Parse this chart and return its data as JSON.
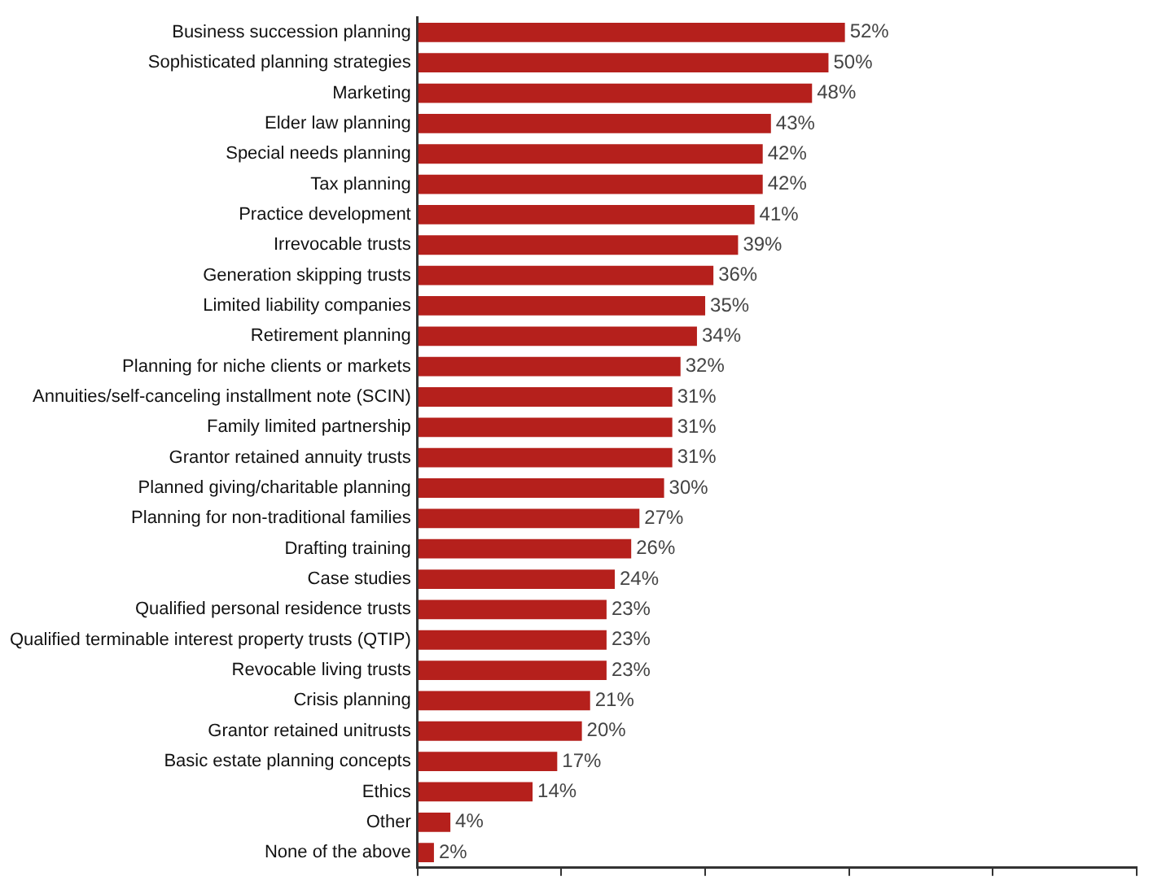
{
  "chart_data": {
    "type": "bar",
    "orientation": "horizontal",
    "categories": [
      "Business succession planning",
      "Sophisticated planning strategies",
      "Marketing",
      "Elder law planning",
      "Special needs planning",
      "Tax planning",
      "Practice development",
      "Irrevocable trusts",
      "Generation skipping trusts",
      "Limited liability companies",
      "Retirement planning",
      "Planning for niche clients or markets",
      "Annuities/self-canceling installment note (SCIN)",
      "Family limited partnership",
      "Grantor retained annuity trusts",
      "Planned giving/charitable planning",
      "Planning for non-traditional families",
      "Drafting training",
      "Case studies",
      "Qualified personal residence trusts",
      "Qualified terminable interest property trusts (QTIP)",
      "Revocable living trusts",
      "Crisis planning",
      "Grantor retained unitrusts",
      "Basic estate planning concepts",
      "Ethics",
      "Other",
      "None of the above"
    ],
    "values": [
      52,
      50,
      48,
      43,
      42,
      42,
      41,
      39,
      36,
      35,
      34,
      32,
      31,
      31,
      31,
      30,
      27,
      26,
      24,
      23,
      23,
      23,
      21,
      20,
      17,
      14,
      4,
      2
    ],
    "value_labels": [
      "52%",
      "50%",
      "48%",
      "43%",
      "42%",
      "42%",
      "41%",
      "39%",
      "36%",
      "35%",
      "34%",
      "32%",
      "31%",
      "31%",
      "31%",
      "30%",
      "27%",
      "26%",
      "24%",
      "23%",
      "23%",
      "23%",
      "21%",
      "20%",
      "17%",
      "14%",
      "4%",
      "2%"
    ],
    "color": "#b5201c",
    "xlim": [
      0,
      87.5
    ],
    "xticks": [
      {
        "value": 0,
        "label": null
      },
      {
        "value": 17.5,
        "label": null
      },
      {
        "value": 35,
        "label": null
      },
      {
        "value": 52.5,
        "label": null
      },
      {
        "value": 70,
        "label": null
      },
      {
        "value": 87.5,
        "label": null
      }
    ],
    "tick_labels": "y",
    "grid": false,
    "legend": false
  }
}
